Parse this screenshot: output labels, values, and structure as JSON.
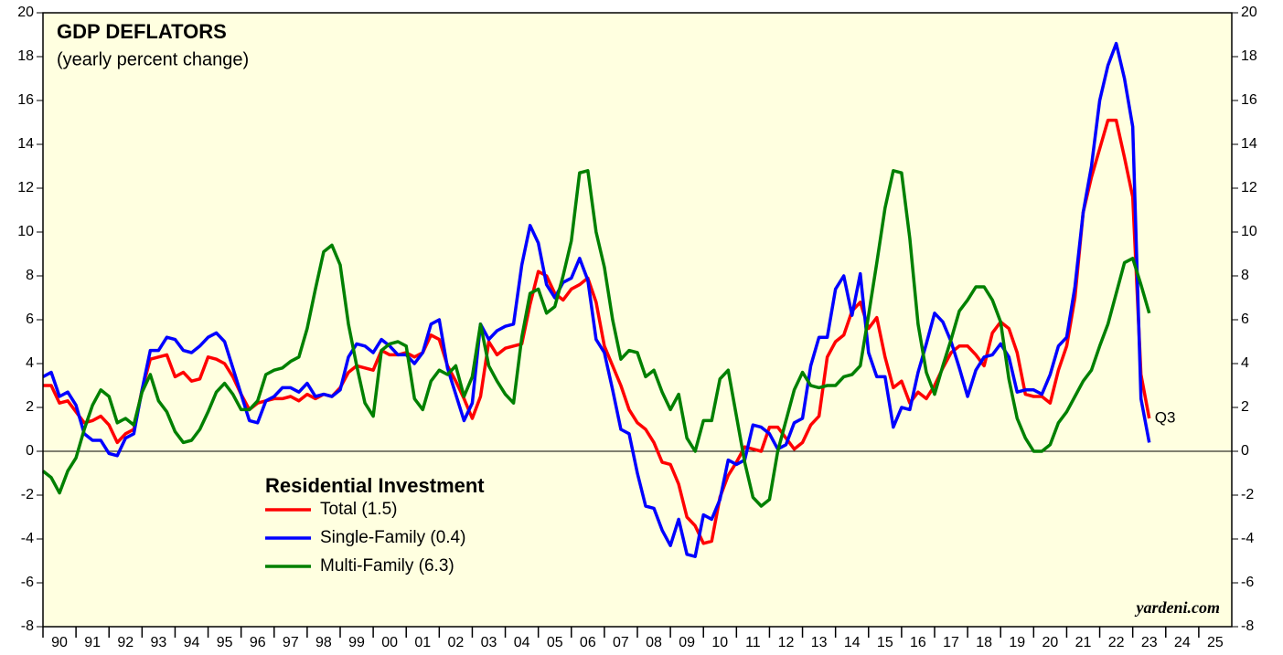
{
  "chart_data": {
    "type": "line",
    "title": "GDP DEFLATORS",
    "subtitle": "(yearly percent change)",
    "legend_title": "Residential Investment",
    "annotation": "Q3",
    "source": "yardeni.com",
    "xlim": [
      1990,
      2026
    ],
    "ylim": [
      -8,
      20
    ],
    "y2lim": [
      -8,
      20
    ],
    "yticks": [
      -8,
      -6,
      -4,
      -2,
      0,
      2,
      4,
      6,
      8,
      10,
      12,
      14,
      16,
      18,
      20
    ],
    "xticks": [
      {
        "value": 1990,
        "label": "90"
      },
      {
        "value": 1991,
        "label": "91"
      },
      {
        "value": 1992,
        "label": "92"
      },
      {
        "value": 1993,
        "label": "93"
      },
      {
        "value": 1994,
        "label": "94"
      },
      {
        "value": 1995,
        "label": "95"
      },
      {
        "value": 1996,
        "label": "96"
      },
      {
        "value": 1997,
        "label": "97"
      },
      {
        "value": 1998,
        "label": "98"
      },
      {
        "value": 1999,
        "label": "99"
      },
      {
        "value": 2000,
        "label": "00"
      },
      {
        "value": 2001,
        "label": "01"
      },
      {
        "value": 2002,
        "label": "02"
      },
      {
        "value": 2003,
        "label": "03"
      },
      {
        "value": 2004,
        "label": "04"
      },
      {
        "value": 2005,
        "label": "05"
      },
      {
        "value": 2006,
        "label": "06"
      },
      {
        "value": 2007,
        "label": "07"
      },
      {
        "value": 2008,
        "label": "08"
      },
      {
        "value": 2009,
        "label": "09"
      },
      {
        "value": 2010,
        "label": "10"
      },
      {
        "value": 2011,
        "label": "11"
      },
      {
        "value": 2012,
        "label": "12"
      },
      {
        "value": 2013,
        "label": "13"
      },
      {
        "value": 2014,
        "label": "14"
      },
      {
        "value": 2015,
        "label": "15"
      },
      {
        "value": 2016,
        "label": "16"
      },
      {
        "value": 2017,
        "label": "17"
      },
      {
        "value": 2018,
        "label": "18"
      },
      {
        "value": 2019,
        "label": "19"
      },
      {
        "value": 2020,
        "label": "20"
      },
      {
        "value": 2021,
        "label": "21"
      },
      {
        "value": 2022,
        "label": "22"
      },
      {
        "value": 2023,
        "label": "23"
      },
      {
        "value": 2024,
        "label": "24"
      },
      {
        "value": 2025,
        "label": "25"
      }
    ],
    "x": [
      1990,
      1990.25,
      1990.5,
      1990.75,
      1991,
      1991.25,
      1991.5,
      1991.75,
      1992,
      1992.25,
      1992.5,
      1992.75,
      1993,
      1993.25,
      1993.5,
      1993.75,
      1994,
      1994.25,
      1994.5,
      1994.75,
      1995,
      1995.25,
      1995.5,
      1995.75,
      1996,
      1996.25,
      1996.5,
      1996.75,
      1997,
      1997.25,
      1997.5,
      1997.75,
      1998,
      1998.25,
      1998.5,
      1998.75,
      1999,
      1999.25,
      1999.5,
      1999.75,
      2000,
      2000.25,
      2000.5,
      2000.75,
      2001,
      2001.25,
      2001.5,
      2001.75,
      2002,
      2002.25,
      2002.5,
      2002.75,
      2003,
      2003.25,
      2003.5,
      2003.75,
      2004,
      2004.25,
      2004.5,
      2004.75,
      2005,
      2005.25,
      2005.5,
      2005.75,
      2006,
      2006.25,
      2006.5,
      2006.75,
      2007,
      2007.25,
      2007.5,
      2007.75,
      2008,
      2008.25,
      2008.5,
      2008.75,
      2009,
      2009.25,
      2009.5,
      2009.75,
      2010,
      2010.25,
      2010.5,
      2010.75,
      2011,
      2011.25,
      2011.5,
      2011.75,
      2012,
      2012.25,
      2012.5,
      2012.75,
      2013,
      2013.25,
      2013.5,
      2013.75,
      2014,
      2014.25,
      2014.5,
      2014.75,
      2015,
      2015.25,
      2015.5,
      2015.75,
      2016,
      2016.25,
      2016.5,
      2016.75,
      2017,
      2017.25,
      2017.5,
      2017.75,
      2018,
      2018.25,
      2018.5,
      2018.75,
      2019,
      2019.25,
      2019.5,
      2019.75,
      2020,
      2020.25,
      2020.5,
      2020.75,
      2021,
      2021.25,
      2021.5,
      2021.75,
      2022,
      2022.25,
      2022.5,
      2022.75,
      2023,
      2023.25,
      2023.5
    ],
    "series": [
      {
        "name": "Total (1.5)",
        "color": "#ff0000",
        "values": [
          3.0,
          3.0,
          2.2,
          2.3,
          1.8,
          1.3,
          1.4,
          1.6,
          1.2,
          0.4,
          0.8,
          1.0,
          2.8,
          4.2,
          4.3,
          4.4,
          3.4,
          3.6,
          3.2,
          3.3,
          4.3,
          4.2,
          4.0,
          3.4,
          2.6,
          1.9,
          2.2,
          2.3,
          2.4,
          2.4,
          2.5,
          2.3,
          2.6,
          2.4,
          2.6,
          2.5,
          2.9,
          3.6,
          3.9,
          3.8,
          3.7,
          4.6,
          4.4,
          4.4,
          4.5,
          4.3,
          4.5,
          5.3,
          5.1,
          3.9,
          3.2,
          2.4,
          1.5,
          2.5,
          5.0,
          4.4,
          4.7,
          4.8,
          4.9,
          6.7,
          8.2,
          8.0,
          7.2,
          6.9,
          7.4,
          7.6,
          7.9,
          6.8,
          4.8,
          3.9,
          3.0,
          1.9,
          1.3,
          1.0,
          0.4,
          -0.5,
          -0.6,
          -1.5,
          -3.0,
          -3.4,
          -4.2,
          -4.1,
          -2.1,
          -1.1,
          -0.5,
          0.2,
          0.1,
          0.0,
          1.1,
          1.1,
          0.6,
          0.1,
          0.4,
          1.2,
          1.6,
          4.3,
          5.0,
          5.3,
          6.4,
          6.8,
          5.6,
          6.1,
          4.3,
          2.9,
          3.2,
          2.2,
          2.7,
          2.4,
          3.0,
          3.8,
          4.5,
          4.8,
          4.8,
          4.4,
          3.9,
          5.4,
          5.9,
          5.6,
          4.5,
          2.6,
          2.5,
          2.5,
          2.2,
          3.7,
          4.8,
          7.0,
          10.9,
          12.5,
          13.8,
          15.1,
          15.1,
          13.4,
          11.6,
          3.5,
          1.5
        ]
      },
      {
        "name": "Single-Family (0.4)",
        "color": "#0000ff",
        "values": [
          3.4,
          3.6,
          2.5,
          2.7,
          2.1,
          0.8,
          0.5,
          0.5,
          -0.1,
          -0.2,
          0.6,
          0.8,
          2.8,
          4.6,
          4.6,
          5.2,
          5.1,
          4.6,
          4.5,
          4.8,
          5.2,
          5.4,
          5.0,
          3.8,
          2.6,
          1.4,
          1.3,
          2.3,
          2.5,
          2.9,
          2.9,
          2.7,
          3.1,
          2.5,
          2.6,
          2.5,
          2.8,
          4.3,
          4.9,
          4.8,
          4.5,
          5.1,
          4.8,
          4.4,
          4.4,
          4.0,
          4.5,
          5.8,
          6.0,
          3.8,
          2.6,
          1.4,
          2.2,
          5.8,
          5.1,
          5.5,
          5.7,
          5.8,
          8.5,
          10.3,
          9.5,
          7.6,
          7.0,
          7.7,
          7.9,
          8.8,
          7.8,
          5.1,
          4.5,
          2.8,
          1.0,
          0.8,
          -1.0,
          -2.5,
          -2.6,
          -3.6,
          -4.3,
          -3.1,
          -4.7,
          -4.8,
          -2.9,
          -3.1,
          -2.2,
          -0.4,
          -0.6,
          -0.4,
          1.2,
          1.1,
          0.8,
          0.1,
          0.3,
          1.3,
          1.5,
          3.9,
          5.2,
          5.2,
          7.4,
          8.0,
          6.2,
          8.1,
          4.5,
          3.4,
          3.4,
          1.1,
          2.0,
          1.9,
          3.6,
          4.9,
          6.3,
          5.9,
          5.0,
          3.8,
          2.5,
          3.7,
          4.3,
          4.4,
          4.9,
          4.3,
          2.7,
          2.8,
          2.8,
          2.6,
          3.5,
          4.8,
          5.2,
          7.5,
          10.9,
          13.0,
          16.0,
          17.6,
          18.6,
          17.0,
          14.8,
          2.4,
          0.4
        ]
      },
      {
        "name": "Multi-Family (6.3)",
        "color": "#008000",
        "values": [
          -0.9,
          -1.2,
          -1.9,
          -0.9,
          -0.3,
          1.0,
          2.1,
          2.8,
          2.5,
          1.3,
          1.5,
          1.2,
          2.7,
          3.5,
          2.3,
          1.8,
          0.9,
          0.4,
          0.5,
          1.0,
          1.8,
          2.7,
          3.1,
          2.6,
          1.9,
          1.9,
          2.3,
          3.5,
          3.7,
          3.8,
          4.1,
          4.3,
          5.6,
          7.4,
          9.1,
          9.4,
          8.5,
          5.8,
          3.9,
          2.2,
          1.6,
          4.6,
          4.9,
          5.0,
          4.8,
          2.4,
          1.9,
          3.2,
          3.7,
          3.5,
          3.9,
          2.5,
          3.4,
          5.8,
          3.9,
          3.2,
          2.6,
          2.2,
          5.2,
          7.2,
          7.4,
          6.3,
          6.6,
          8.0,
          9.6,
          12.7,
          12.8,
          10.0,
          8.4,
          6.0,
          4.2,
          4.6,
          4.5,
          3.4,
          3.7,
          2.7,
          1.9,
          2.6,
          0.6,
          0.0,
          1.4,
          1.4,
          3.3,
          3.7,
          1.6,
          -0.5,
          -2.1,
          -2.5,
          -2.2,
          0.0,
          1.4,
          2.8,
          3.6,
          3.0,
          2.9,
          3.0,
          3.0,
          3.4,
          3.5,
          3.9,
          6.2,
          8.6,
          11.1,
          12.8,
          12.7,
          9.7,
          5.8,
          3.6,
          2.6,
          3.9,
          5.1,
          6.4,
          6.9,
          7.5,
          7.5,
          6.9,
          5.9,
          3.3,
          1.5,
          0.6,
          0.0,
          0.0,
          0.3,
          1.3,
          1.8,
          2.5,
          3.2,
          3.7,
          4.8,
          5.8,
          7.2,
          8.6,
          8.8,
          7.6,
          6.3
        ]
      }
    ]
  }
}
